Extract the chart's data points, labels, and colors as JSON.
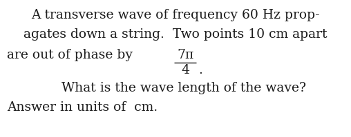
{
  "background_color": "#ffffff",
  "text_color": "#1c1c1c",
  "line1": "A transverse wave of frequency 60 Hz prop-",
  "line2": "agates down a string.  Two points 10 cm apart",
  "line3_left": "are out of phase by ",
  "line3_frac_num": "7π",
  "line3_frac_den": "4",
  "line3_dot": ".",
  "line4": "    What is the wave length of the wave?",
  "line5": "Answer in units of  cm.",
  "font_size": 13.5,
  "fig_width": 5.08,
  "fig_height": 1.99,
  "dpi": 100
}
